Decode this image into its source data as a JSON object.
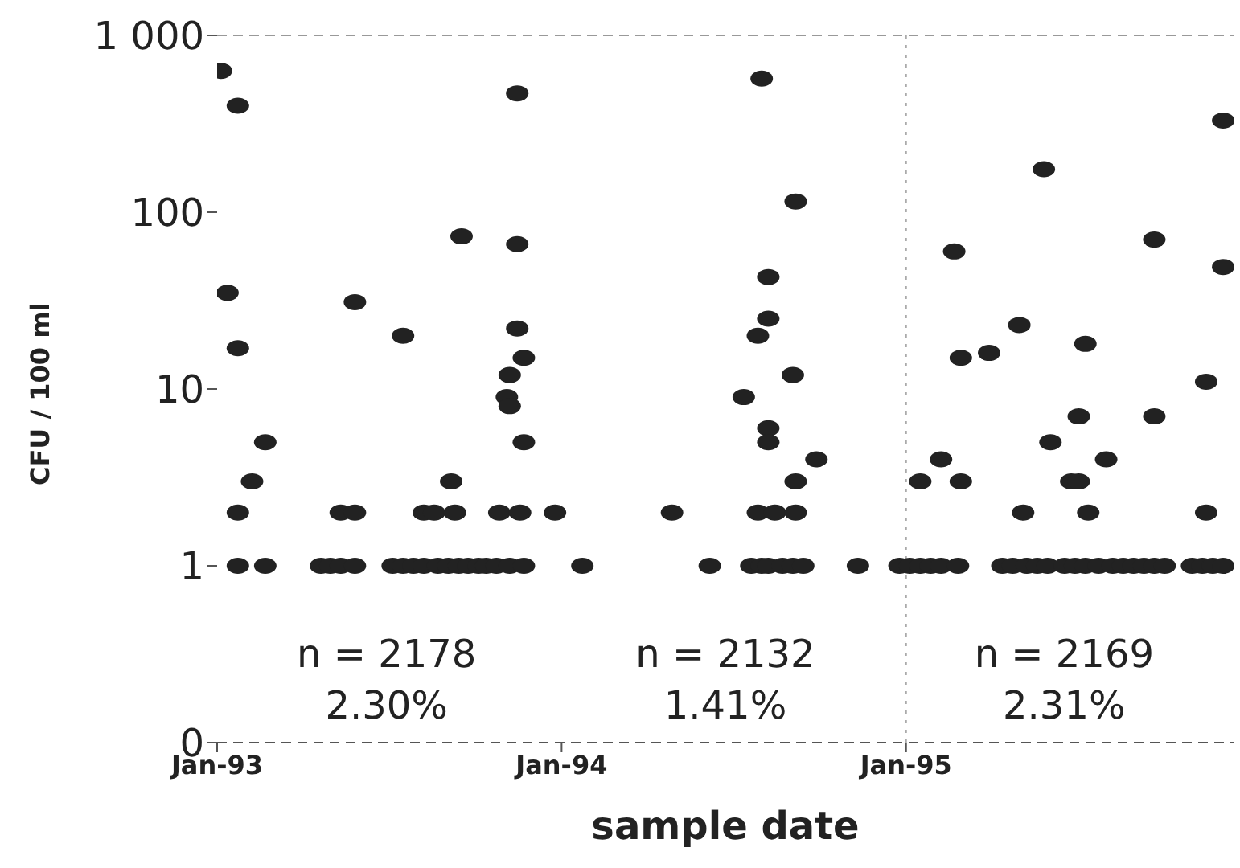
{
  "chart_data": {
    "type": "scatter",
    "xlabel": "sample date",
    "ylabel": "CFU / 100 ml",
    "log": "y",
    "marker": "circle",
    "legend": false,
    "xlim": [
      "1993-01-01",
      "1995-12-14"
    ],
    "xticks": [
      {
        "value": "1993-01-01",
        "label": "Jan-93"
      },
      {
        "value": "1994-01-01",
        "label": "Jan-94"
      },
      {
        "value": "1995-01-01",
        "label": "Jan-95"
      }
    ],
    "ylim": [
      0.1,
      1000
    ],
    "yticks": [
      {
        "value": 0.1,
        "label": "0"
      },
      1,
      10,
      100,
      {
        "value": 1000,
        "label": "1 000"
      }
    ],
    "ref_lines": [
      {
        "axis": "y",
        "value": 1000,
        "color": "#999999",
        "line_style": "dashed"
      },
      {
        "axis": "x",
        "value": "1995-01-01",
        "color": "#aaaaaa",
        "line_style": "dotted"
      }
    ],
    "annotations": [
      "n = 2178",
      "2.30%",
      "n = 2132",
      "1.41%",
      "n = 2169",
      "2.31%"
    ],
    "series": [
      {
        "color": "#222222",
        "x": [
          "1993-01-05",
          "1993-01-23",
          "1993-01-12",
          "1993-01-23",
          "1993-02-21",
          "1993-02-07",
          "1993-01-23",
          "1993-01-23",
          "1993-02-21",
          "1993-05-27",
          "1993-05-12",
          "1993-05-27",
          "1993-04-21",
          "1993-05-01",
          "1993-05-12",
          "1993-05-27",
          "1993-07-17",
          "1993-09-17",
          "1993-09-06",
          "1993-08-08",
          "1993-08-19",
          "1993-09-10",
          "1993-07-06",
          "1993-07-17",
          "1993-07-28",
          "1993-08-08",
          "1993-08-23",
          "1993-09-03",
          "1993-09-14",
          "1993-09-24",
          "1993-10-05",
          "1993-10-13",
          "1993-11-15",
          "1993-11-15",
          "1993-11-15",
          "1993-11-22",
          "1993-11-07",
          "1993-11-04",
          "1993-11-07",
          "1993-11-22",
          "1993-10-27",
          "1993-11-18",
          "1993-10-24",
          "1993-11-07",
          "1993-11-22",
          "1993-12-25",
          "1994-01-23",
          "1994-04-28",
          "1994-06-07",
          "1994-08-01",
          "1994-09-06",
          "1994-08-08",
          "1994-08-08",
          "1994-07-28",
          "1994-09-03",
          "1994-07-13",
          "1994-08-08",
          "1994-08-08",
          "1994-09-28",
          "1994-09-06",
          "1994-07-28",
          "1994-08-15",
          "1994-09-06",
          "1994-07-21",
          "1994-08-01",
          "1994-08-08",
          "1994-08-23",
          "1994-09-03",
          "1994-09-14",
          "1994-11-11",
          "1994-12-25",
          "1995-01-05",
          "1995-01-16",
          "1995-01-27",
          "1995-02-07",
          "1995-02-25",
          "1995-01-16",
          "1995-02-07",
          "1995-02-28",
          "1995-02-21",
          "1995-02-28",
          "1995-03-30",
          "1995-05-01",
          "1995-05-27",
          "1995-05-05",
          "1995-04-13",
          "1995-04-24",
          "1995-05-09",
          "1995-05-20",
          "1995-05-31",
          "1995-07-10",
          "1995-07-03",
          "1995-06-03",
          "1995-08-01",
          "1995-06-25",
          "1995-07-03",
          "1995-07-13",
          "1995-06-18",
          "1995-06-29",
          "1995-07-10",
          "1995-07-24",
          "1995-08-08",
          "1995-09-21",
          "1995-09-21",
          "1995-08-19",
          "1995-08-30",
          "1995-09-10",
          "1995-09-21",
          "1995-10-02",
          "1995-12-03",
          "1995-12-03",
          "1995-11-15",
          "1995-11-15",
          "1995-10-31",
          "1995-11-11",
          "1995-11-22",
          "1995-12-03"
        ],
        "values": [
          630,
          400,
          35,
          17,
          5,
          3,
          2,
          1,
          1,
          31,
          2,
          2,
          1,
          1,
          1,
          1,
          20,
          73,
          3,
          2,
          2,
          2,
          1,
          1,
          1,
          1,
          1,
          1,
          1,
          1,
          1,
          1,
          470,
          66,
          22,
          15,
          12,
          9,
          8,
          5,
          2,
          2,
          1,
          1,
          1,
          2,
          1,
          2,
          1,
          570,
          115,
          43,
          25,
          20,
          12,
          9,
          6,
          5,
          4,
          3,
          2,
          2,
          2,
          1,
          1,
          1,
          1,
          1,
          1,
          1,
          1,
          1,
          1,
          1,
          1,
          1,
          3,
          4,
          3,
          60,
          15,
          16,
          23,
          175,
          2,
          1,
          1,
          1,
          1,
          1,
          18,
          7,
          5,
          4,
          3,
          3,
          2,
          1,
          1,
          1,
          1,
          1,
          70,
          7,
          1,
          1,
          1,
          1,
          1,
          330,
          49,
          11,
          2,
          1,
          1,
          1,
          1
        ]
      }
    ]
  }
}
